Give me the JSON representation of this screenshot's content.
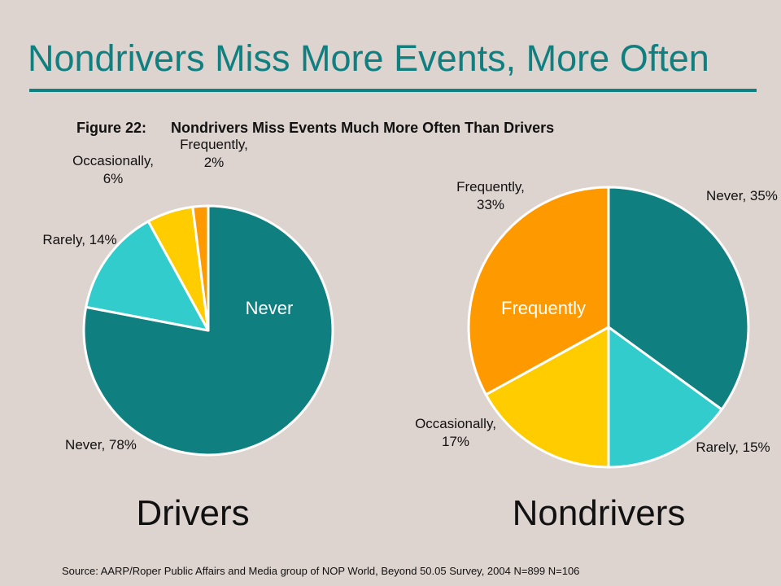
{
  "slide": {
    "title": "Nondrivers Miss More Events, More Often",
    "figure_label": "Figure 22:",
    "figure_title": "Nondrivers Miss Events Much More Often Than Drivers",
    "source": "Source: AARP/Roper Public Affairs and Media group of NOP World, Beyond 50.05 Survey, 2004   N=899  N=106"
  },
  "colors": {
    "Never": "#0F7F80",
    "Rarely": "#33CCCC",
    "Occasionally": "#FFCC00",
    "Frequently": "#FF9900"
  },
  "chart_data": [
    {
      "type": "pie",
      "caption": "Drivers",
      "inner_label": "Never",
      "categories": [
        "Never",
        "Rarely",
        "Occasionally",
        "Frequently"
      ],
      "values": [
        78,
        14,
        6,
        2
      ],
      "labels": [
        [
          "Never, 78%"
        ],
        [
          "Rarely, 14%"
        ],
        [
          "Occasionally,",
          "6%"
        ],
        [
          "Frequently,",
          "2%"
        ]
      ]
    },
    {
      "type": "pie",
      "caption": "Nondrivers",
      "inner_label": "Frequently",
      "categories": [
        "Never",
        "Rarely",
        "Occasionally",
        "Frequently"
      ],
      "values": [
        35,
        15,
        17,
        33
      ],
      "labels": [
        [
          "Never, 35%"
        ],
        [
          "Rarely, 15%"
        ],
        [
          "Occasionally,",
          "17%"
        ],
        [
          "Frequently,",
          "33%"
        ]
      ]
    }
  ]
}
